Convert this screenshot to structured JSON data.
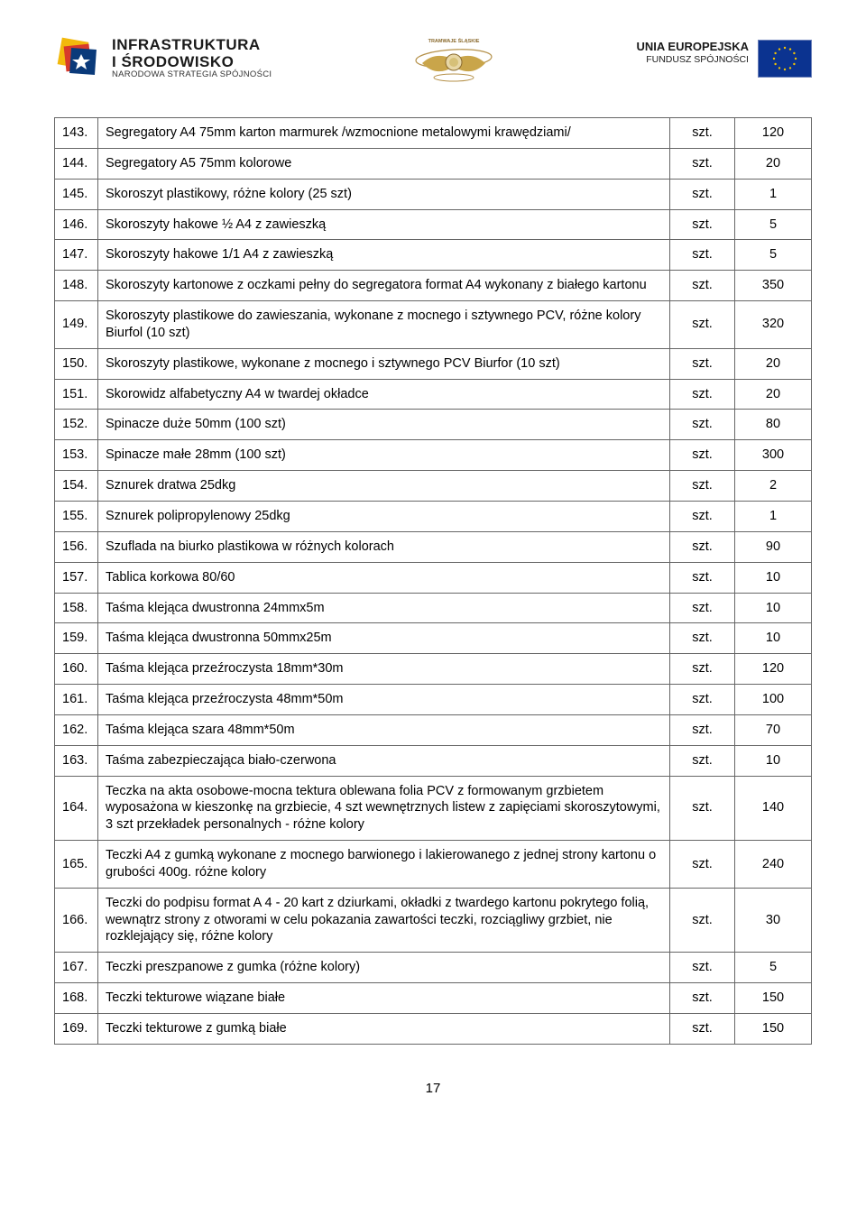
{
  "header": {
    "left": {
      "line1": "INFRASTRUKTURA",
      "line2": "I ŚRODOWISKO",
      "line3": "NARODOWA STRATEGIA SPÓJNOŚCI"
    },
    "center_alt": "Tramwaje Śląskie",
    "right": {
      "line1": "UNIA EUROPEJSKA",
      "line2": "FUNDUSZ SPÓJNOŚCI"
    }
  },
  "table": {
    "unit_label": "szt.",
    "rows": [
      {
        "n": "143.",
        "desc": "Segregatory A4 75mm  karton marmurek /wzmocnione metalowymi krawędziami/",
        "u": "szt.",
        "q": "120"
      },
      {
        "n": "144.",
        "desc": "Segregatory A5 75mm kolorowe",
        "u": "szt.",
        "q": "20"
      },
      {
        "n": "145.",
        "desc": "Skoroszyt plastikowy, różne kolory (25 szt)",
        "u": "szt.",
        "q": "1"
      },
      {
        "n": "146.",
        "desc": "Skoroszyty hakowe ½ A4 z zawieszką",
        "u": "szt.",
        "q": "5"
      },
      {
        "n": "147.",
        "desc": "Skoroszyty hakowe 1/1 A4 z zawieszką",
        "u": "szt.",
        "q": "5"
      },
      {
        "n": "148.",
        "desc": "Skoroszyty kartonowe z oczkami pełny do segregatora format A4 wykonany z białego kartonu",
        "u": "szt.",
        "q": "350"
      },
      {
        "n": "149.",
        "desc": "Skoroszyty plastikowe  do zawieszania, wykonane z mocnego i sztywnego PCV, różne kolory Biurfol (10 szt)",
        "u": "szt.",
        "q": "320"
      },
      {
        "n": "150.",
        "desc": "Skoroszyty plastikowe, wykonane z mocnego i sztywnego PCV Biurfor (10 szt)",
        "u": "szt.",
        "q": "20"
      },
      {
        "n": "151.",
        "desc": "Skorowidz alfabetyczny A4 w twardej okładce",
        "u": "szt.",
        "q": "20"
      },
      {
        "n": "152.",
        "desc": "Spinacze duże 50mm (100 szt)",
        "u": "szt.",
        "q": "80"
      },
      {
        "n": "153.",
        "desc": "Spinacze małe 28mm (100 szt)",
        "u": "szt.",
        "q": "300"
      },
      {
        "n": "154.",
        "desc": "Sznurek dratwa 25dkg",
        "u": "szt.",
        "q": "2"
      },
      {
        "n": "155.",
        "desc": "Sznurek polipropylenowy 25dkg",
        "u": "szt.",
        "q": "1"
      },
      {
        "n": "156.",
        "desc": "Szuflada na biurko plastikowa w różnych kolorach",
        "u": "szt.",
        "q": "90"
      },
      {
        "n": "157.",
        "desc": "Tablica korkowa 80/60",
        "u": "szt.",
        "q": "10"
      },
      {
        "n": "158.",
        "desc": "Taśma klejąca dwustronna 24mmx5m",
        "u": "szt.",
        "q": "10"
      },
      {
        "n": "159.",
        "desc": "Taśma klejąca dwustronna 50mmx25m",
        "u": "szt.",
        "q": "10"
      },
      {
        "n": "160.",
        "desc": "Taśma klejąca przeźroczysta 18mm*30m",
        "u": "szt.",
        "q": "120"
      },
      {
        "n": "161.",
        "desc": "Taśma klejąca przeźroczysta 48mm*50m",
        "u": "szt.",
        "q": "100"
      },
      {
        "n": "162.",
        "desc": "Taśma klejąca szara 48mm*50m",
        "u": "szt.",
        "q": "70"
      },
      {
        "n": "163.",
        "desc": "Taśma zabezpieczająca biało-czerwona",
        "u": "szt.",
        "q": "10"
      },
      {
        "n": "164.",
        "desc": "Teczka na akta osobowe-mocna tektura oblewana folia PCV z formowanym grzbietem wyposażona w kieszonkę na grzbiecie, 4 szt wewnętrznych listew z zapięciami skoroszytowymi, 3 szt przekładek personalnych - różne kolory",
        "u": "szt.",
        "q": "140"
      },
      {
        "n": "165.",
        "desc": "Teczki A4  z gumką wykonane z mocnego  barwionego i lakierowanego z jednej strony kartonu o grubości 400g. różne kolory",
        "u": "szt.",
        "q": "240"
      },
      {
        "n": "166.",
        "desc": "Teczki do podpisu format A 4 - 20 kart z dziurkami, okładki z twardego kartonu pokrytego folią, wewnątrz strony z otworami w celu pokazania zawartości teczki, rozciągliwy grzbiet, nie rozklejający się, różne kolory",
        "u": "szt.",
        "q": "30"
      },
      {
        "n": "167.",
        "desc": "Teczki preszpanowe z gumka (różne kolory)",
        "u": "szt.",
        "q": "5"
      },
      {
        "n": "168.",
        "desc": "Teczki tekturowe wiązane białe",
        "u": "szt.",
        "q": "150"
      },
      {
        "n": "169.",
        "desc": "Teczki tekturowe z gumką białe",
        "u": "szt.",
        "q": "150"
      }
    ]
  },
  "page_number": "17",
  "colors": {
    "border": "#666666",
    "text": "#000000",
    "eu_blue": "#0b3390",
    "eu_gold": "#f4c400",
    "logo_blue": "#0a3a7a",
    "logo_red": "#d83a2a",
    "logo_yellow": "#f2b90c",
    "emblem_gold": "#c9a54a"
  }
}
